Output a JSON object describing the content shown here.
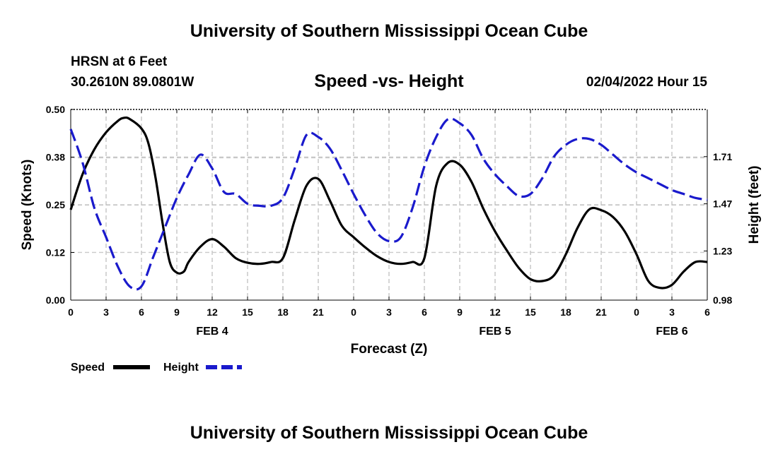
{
  "header": {
    "title": "University of Southern Mississippi Ocean Cube",
    "station": "HRSN at 6 Feet",
    "coordinates": "30.2610N  89.0801W",
    "date_label": "02/04/2022 Hour 15"
  },
  "footer": {
    "title": "University of Southern Mississippi Ocean Cube"
  },
  "chart_data": {
    "type": "line",
    "title": "Speed -vs- Height",
    "xlabel": "Forecast (Z)",
    "ylabel": "Speed (Knots)",
    "y2label": "Height (feet)",
    "x_ticks": [
      "0",
      "3",
      "6",
      "9",
      "12",
      "15",
      "18",
      "21",
      "0",
      "3",
      "6",
      "9",
      "12",
      "15",
      "18",
      "21",
      "0",
      "3",
      "6"
    ],
    "day_labels": [
      {
        "label": "FEB 4",
        "tick": 4
      },
      {
        "label": "FEB 5",
        "tick": 12
      },
      {
        "label": "FEB 6",
        "tick": 17
      }
    ],
    "xlim": [
      0,
      54
    ],
    "ylim": [
      0.0,
      0.5
    ],
    "y_ticks": [
      "0.00",
      "0.12",
      "0.25",
      "0.38",
      "0.50"
    ],
    "y2lim": [
      0.98,
      1.95
    ],
    "y2_ticks": [
      {
        "value": 0.98,
        "label": "0.98"
      },
      {
        "value": 1.23,
        "label": "1.23"
      },
      {
        "value": 1.47,
        "label": "1.47"
      },
      {
        "value": 1.71,
        "label": "1.71"
      }
    ],
    "grid": true,
    "legend_position": "bottom-left",
    "series": [
      {
        "name": "Speed",
        "axis": "left",
        "color": "#000000",
        "style": "solid",
        "x": [
          0,
          1,
          2,
          3,
          4,
          4.5,
          5,
          6,
          6.6,
          7.2,
          7.8,
          8.4,
          9,
          9.6,
          10,
          11,
          12,
          13,
          14,
          15,
          16,
          17,
          18,
          19,
          20,
          21,
          22,
          23,
          24,
          25,
          26,
          27,
          28,
          29,
          30,
          31,
          32,
          33,
          34,
          35,
          36,
          37,
          38,
          39,
          40,
          41,
          42,
          43,
          44,
          45,
          46,
          47,
          48,
          49,
          50,
          51,
          52,
          53,
          54
        ],
        "values": [
          0.237,
          0.33,
          0.395,
          0.44,
          0.47,
          0.478,
          0.475,
          0.45,
          0.41,
          0.32,
          0.2,
          0.1,
          0.072,
          0.075,
          0.1,
          0.14,
          0.16,
          0.14,
          0.11,
          0.098,
          0.095,
          0.1,
          0.11,
          0.21,
          0.3,
          0.318,
          0.26,
          0.195,
          0.165,
          0.138,
          0.115,
          0.1,
          0.095,
          0.1,
          0.11,
          0.3,
          0.36,
          0.355,
          0.31,
          0.24,
          0.18,
          0.13,
          0.085,
          0.055,
          0.05,
          0.065,
          0.12,
          0.19,
          0.238,
          0.236,
          0.218,
          0.18,
          0.12,
          0.05,
          0.032,
          0.04,
          0.075,
          0.1,
          0.1
        ]
      },
      {
        "name": "Height",
        "axis": "right",
        "color": "#1a1acc",
        "style": "dashed",
        "x": [
          0,
          1,
          2,
          3,
          4,
          5,
          6,
          7,
          8,
          9,
          10,
          11,
          12,
          13,
          14,
          15,
          16,
          17,
          18,
          19,
          20,
          21,
          22,
          23,
          24,
          25,
          26,
          27,
          28,
          29,
          30,
          31,
          32,
          33,
          34,
          35,
          36,
          37,
          38,
          39,
          40,
          41,
          42,
          43,
          44,
          45,
          46,
          47,
          48,
          49,
          50,
          51,
          52,
          53,
          54
        ],
        "values": [
          1.85,
          1.68,
          1.45,
          1.3,
          1.15,
          1.05,
          1.05,
          1.2,
          1.35,
          1.5,
          1.62,
          1.72,
          1.65,
          1.53,
          1.52,
          1.47,
          1.46,
          1.46,
          1.5,
          1.65,
          1.82,
          1.81,
          1.75,
          1.64,
          1.52,
          1.41,
          1.32,
          1.28,
          1.3,
          1.45,
          1.66,
          1.81,
          1.9,
          1.88,
          1.82,
          1.7,
          1.62,
          1.56,
          1.51,
          1.52,
          1.6,
          1.71,
          1.77,
          1.8,
          1.8,
          1.77,
          1.72,
          1.67,
          1.63,
          1.6,
          1.57,
          1.54,
          1.52,
          1.5,
          1.49
        ]
      }
    ]
  }
}
